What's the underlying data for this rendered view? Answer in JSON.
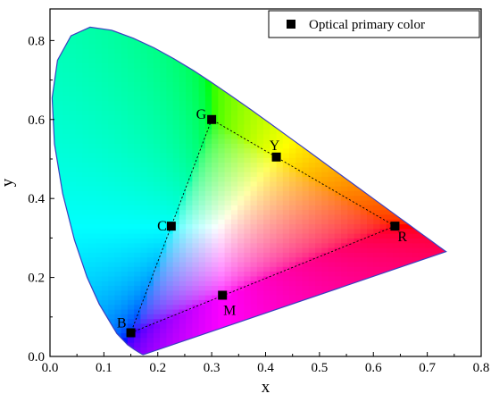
{
  "chart_data": {
    "type": "scatter",
    "xlabel": "x",
    "ylabel": "y",
    "xlim": [
      0.0,
      0.8
    ],
    "ylim": [
      0.0,
      0.88
    ],
    "xticks": [
      0.0,
      0.1,
      0.2,
      0.3,
      0.4,
      0.5,
      0.6,
      0.7,
      0.8
    ],
    "yticks": [
      0.0,
      0.2,
      0.4,
      0.6,
      0.8
    ],
    "xtick_labels": [
      "0.0",
      "0.1",
      "0.2",
      "0.3",
      "0.4",
      "0.5",
      "0.6",
      "0.7",
      "0.8"
    ],
    "ytick_labels": [
      "0.0",
      "0.2",
      "0.4",
      "0.6",
      "0.8"
    ],
    "grid": false,
    "legend": {
      "placement": "top-right",
      "entries": [
        "Optical primary color"
      ]
    },
    "series": [
      {
        "name": "Optical primary color",
        "points": [
          {
            "label": "R",
            "x": 0.64,
            "y": 0.33
          },
          {
            "label": "G",
            "x": 0.3,
            "y": 0.6
          },
          {
            "label": "B",
            "x": 0.15,
            "y": 0.06
          },
          {
            "label": "Y",
            "x": 0.42,
            "y": 0.505
          },
          {
            "label": "C",
            "x": 0.225,
            "y": 0.33
          },
          {
            "label": "M",
            "x": 0.32,
            "y": 0.155
          }
        ]
      }
    ],
    "triangle_order": [
      "R",
      "G",
      "B"
    ],
    "locus": [
      [
        0.1741,
        0.005
      ],
      [
        0.1738,
        0.0049
      ],
      [
        0.1733,
        0.0048
      ],
      [
        0.1726,
        0.0048
      ],
      [
        0.1714,
        0.0051
      ],
      [
        0.1689,
        0.0069
      ],
      [
        0.1644,
        0.0109
      ],
      [
        0.1566,
        0.0177
      ],
      [
        0.144,
        0.0297
      ],
      [
        0.1241,
        0.0578
      ],
      [
        0.0913,
        0.1327
      ],
      [
        0.0687,
        0.2007
      ],
      [
        0.0454,
        0.295
      ],
      [
        0.0235,
        0.4127
      ],
      [
        0.0082,
        0.5384
      ],
      [
        0.0039,
        0.6548
      ],
      [
        0.0139,
        0.7502
      ],
      [
        0.0389,
        0.812
      ],
      [
        0.0743,
        0.8338
      ],
      [
        0.1142,
        0.8262
      ],
      [
        0.1547,
        0.8059
      ],
      [
        0.1929,
        0.7816
      ],
      [
        0.2296,
        0.7543
      ],
      [
        0.2658,
        0.7243
      ],
      [
        0.3016,
        0.6923
      ],
      [
        0.3373,
        0.6589
      ],
      [
        0.3731,
        0.6245
      ],
      [
        0.4087,
        0.5896
      ],
      [
        0.4441,
        0.5547
      ],
      [
        0.4788,
        0.5202
      ],
      [
        0.5125,
        0.4866
      ],
      [
        0.5448,
        0.4544
      ],
      [
        0.5752,
        0.4242
      ],
      [
        0.6029,
        0.3965
      ],
      [
        0.627,
        0.3725
      ],
      [
        0.6482,
        0.3514
      ],
      [
        0.6658,
        0.334
      ],
      [
        0.6801,
        0.3197
      ],
      [
        0.6915,
        0.3083
      ],
      [
        0.7006,
        0.2993
      ],
      [
        0.7079,
        0.292
      ],
      [
        0.714,
        0.2859
      ],
      [
        0.719,
        0.2809
      ],
      [
        0.723,
        0.277
      ],
      [
        0.726,
        0.274
      ],
      [
        0.7283,
        0.2717
      ],
      [
        0.73,
        0.27
      ],
      [
        0.7347,
        0.2653
      ]
    ],
    "colors": {
      "marker": "#000000",
      "locus_edge": "#3b3fc0",
      "triangle_line": "#000000"
    }
  }
}
